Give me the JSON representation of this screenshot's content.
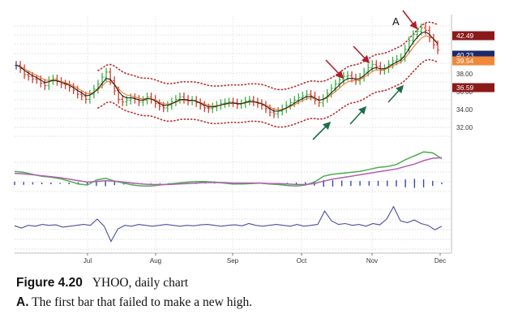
{
  "chart_data": [
    {
      "type": "candlestick",
      "title": "",
      "x_ticks": [
        "Jul",
        "Aug",
        "Sep",
        "Oct",
        "Nov",
        "Dec"
      ],
      "y_ticks": [
        "38.00",
        "36.00",
        "34.00",
        "32.00"
      ],
      "ylim": [
        30,
        44
      ],
      "price_boxes": [
        {
          "label": "42.49",
          "color": "#8b1a1a",
          "text_color": "#ffffff"
        },
        {
          "label": "40.23",
          "color": "#1c2a6b",
          "text_color": "#ffffff"
        },
        {
          "label": "39.54",
          "color": "#f0883a",
          "text_color": "#ffffff"
        },
        {
          "label": "36.59",
          "color": "#8b1a1a",
          "text_color": "#ffffff"
        }
      ],
      "annotation_letter": "A",
      "closes": [
        38.6,
        38.2,
        37.5,
        37.3,
        37.0,
        36.9,
        36.5,
        36.2,
        36.8,
        37.0,
        36.7,
        36.4,
        36.3,
        36.0,
        35.7,
        35.2,
        35.0,
        34.6,
        35.2,
        35.8,
        36.4,
        37.2,
        37.8,
        36.8,
        35.6,
        34.6,
        34.3,
        34.5,
        34.8,
        34.6,
        34.3,
        34.5,
        34.9,
        34.6,
        34.1,
        33.8,
        33.6,
        33.9,
        34.3,
        34.6,
        34.9,
        34.6,
        34.4,
        34.5,
        34.2,
        33.9,
        33.6,
        33.5,
        33.7,
        33.9,
        34.1,
        34.2,
        34.3,
        34.2,
        34.0,
        34.1,
        34.4,
        34.5,
        34.3,
        34.1,
        33.9,
        33.5,
        33.1,
        32.9,
        33.2,
        33.5,
        33.9,
        34.2,
        34.5,
        34.8,
        35.0,
        35.2,
        35.0,
        34.5,
        34.2,
        34.7,
        35.3,
        35.9,
        36.4,
        36.9,
        37.3,
        37.4,
        37.1,
        36.8,
        37.2,
        37.8,
        38.3,
        38.7,
        38.5,
        38.0,
        38.2,
        38.7,
        39.1,
        39.3,
        39.5,
        40.5,
        41.5,
        42.2,
        42.6,
        43.0,
        42.7,
        41.8,
        41.0,
        40.4
      ]
    },
    {
      "type": "line",
      "series": [
        {
          "color": "#4caf50",
          "values": [
            48,
            46,
            42,
            38,
            36,
            33,
            28,
            22,
            20,
            30,
            34,
            28,
            24,
            20,
            18,
            18,
            20,
            22,
            24,
            26,
            27,
            27,
            26,
            24,
            22,
            22,
            23,
            24,
            22,
            21,
            19,
            18,
            20,
            26,
            38,
            42,
            44,
            46,
            48,
            52,
            56,
            58,
            62,
            72,
            80,
            88,
            86,
            74
          ]
        },
        {
          "color": "#b05fb0",
          "values": [
            44,
            43,
            41,
            39,
            37,
            35,
            32,
            29,
            26,
            27,
            29,
            28,
            26,
            24,
            22,
            21,
            21,
            21,
            22,
            23,
            24,
            25,
            25,
            25,
            24,
            24,
            24,
            24,
            23,
            23,
            22,
            21,
            21,
            23,
            28,
            32,
            35,
            38,
            41,
            44,
            47,
            50,
            53,
            58,
            63,
            70,
            75,
            76
          ]
        }
      ],
      "histogram": [
        6,
        5,
        4,
        3,
        3,
        2,
        3,
        4,
        6,
        9,
        10,
        6,
        4,
        2,
        1,
        1,
        1,
        1,
        1,
        2,
        2,
        1,
        1,
        0,
        1,
        1,
        1,
        1,
        1,
        1,
        2,
        3,
        4,
        8,
        12,
        11,
        10,
        9,
        8,
        8,
        9,
        10,
        11,
        14,
        16,
        14,
        9,
        3
      ]
    },
    {
      "type": "line",
      "series": [
        {
          "color": "#4b4ea0",
          "values": [
            45,
            40,
            46,
            44,
            48,
            46,
            47,
            42,
            44,
            46,
            48,
            46,
            60,
            44,
            10,
            38,
            46,
            44,
            48,
            46,
            44,
            46,
            48,
            46,
            44,
            46,
            45,
            47,
            48,
            46,
            44,
            46,
            47,
            45,
            50,
            46,
            44,
            46,
            48,
            46,
            44,
            48,
            44,
            46,
            48,
            78,
            56,
            48,
            50,
            46,
            48,
            44,
            50,
            47,
            60,
            88,
            56,
            52,
            58,
            50,
            46,
            36,
            44
          ]
        }
      ]
    }
  ],
  "caption": {
    "figure_label": "Figure 4.20",
    "figure_title": "YHOO, daily chart",
    "note_letter": "A.",
    "note_text": "The first bar that failed to make a new high."
  },
  "colors": {
    "up_bar": "#3cb043",
    "down_bar": "#d23c2c",
    "neutral_bar": "#3a4aa0",
    "ema_fast": "#222222",
    "ema_slow": "#f07a30",
    "envelope": "#b83030",
    "arrow_red": "#b01e2c",
    "arrow_green": "#1e6e48"
  }
}
